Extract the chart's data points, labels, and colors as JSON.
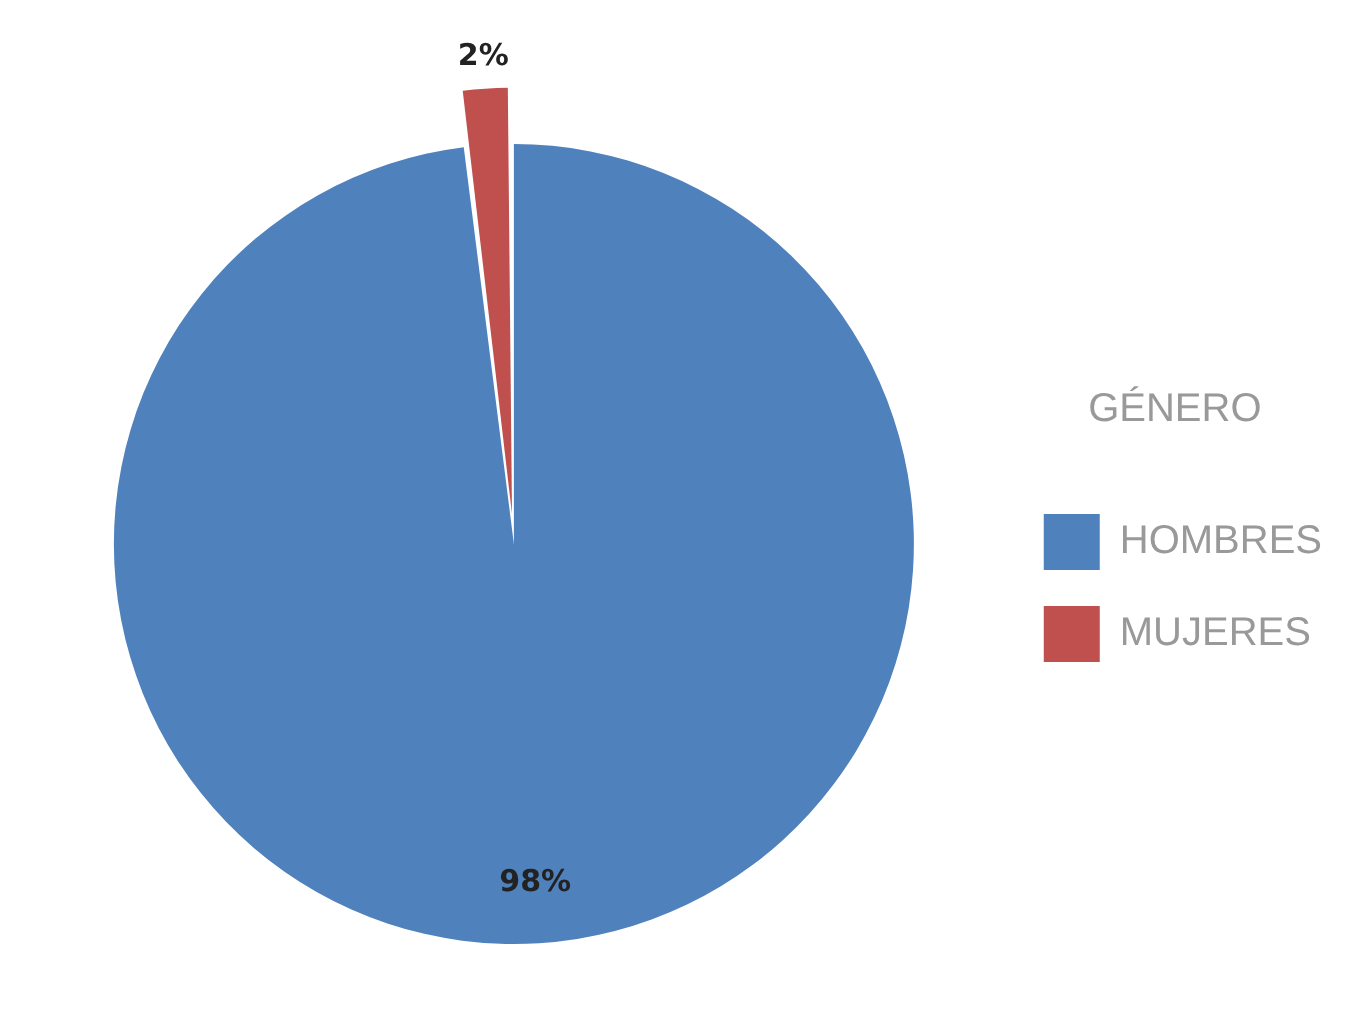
{
  "chart_data": {
    "type": "pie",
    "legend_title": "GÉNERO",
    "legend": "right",
    "categories": [
      "HOMBRES",
      "MUJERES"
    ],
    "values": [
      98,
      2
    ],
    "colors": [
      "#4f81bd",
      "#c0504d"
    ],
    "value_labels": [
      "98%",
      "2%"
    ]
  }
}
